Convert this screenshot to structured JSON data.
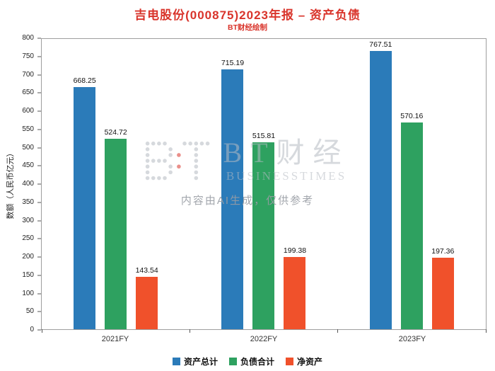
{
  "colors": {
    "title_red": "#D9342B",
    "axis_text": "#222222",
    "watermark_gray": "#B6BBC3"
  },
  "header": {
    "title": "吉电股份(000875)2023年报 – 资产负债",
    "subtitle": "BT财经绘制"
  },
  "watermark": {
    "brand_cn": "BT财经",
    "brand_en": "BUSINESSTIMES",
    "disclaimer": "内容由AI生成，仅供参考"
  },
  "chart_data": {
    "type": "bar",
    "title": "吉电股份(000875)2023年报 – 资产负债",
    "subtitle": "BT财经绘制",
    "categories": [
      "2021FY",
      "2022FY",
      "2023FY"
    ],
    "series": [
      {
        "name": "资产总计",
        "color": "#2B7BB9",
        "values": [
          668.25,
          715.19,
          767.51
        ]
      },
      {
        "name": "负债合计",
        "color": "#2EA160",
        "values": [
          524.72,
          515.81,
          570.16
        ]
      },
      {
        "name": "净资产",
        "color": "#F0512B",
        "values": [
          143.54,
          199.38,
          197.36
        ]
      }
    ],
    "xlabel": "",
    "ylabel": "数额（人民币亿元）",
    "ylim": [
      0,
      800
    ],
    "ytick_step": 50,
    "grid": false,
    "legend_position": "bottom",
    "value_label_decimals": 2
  }
}
